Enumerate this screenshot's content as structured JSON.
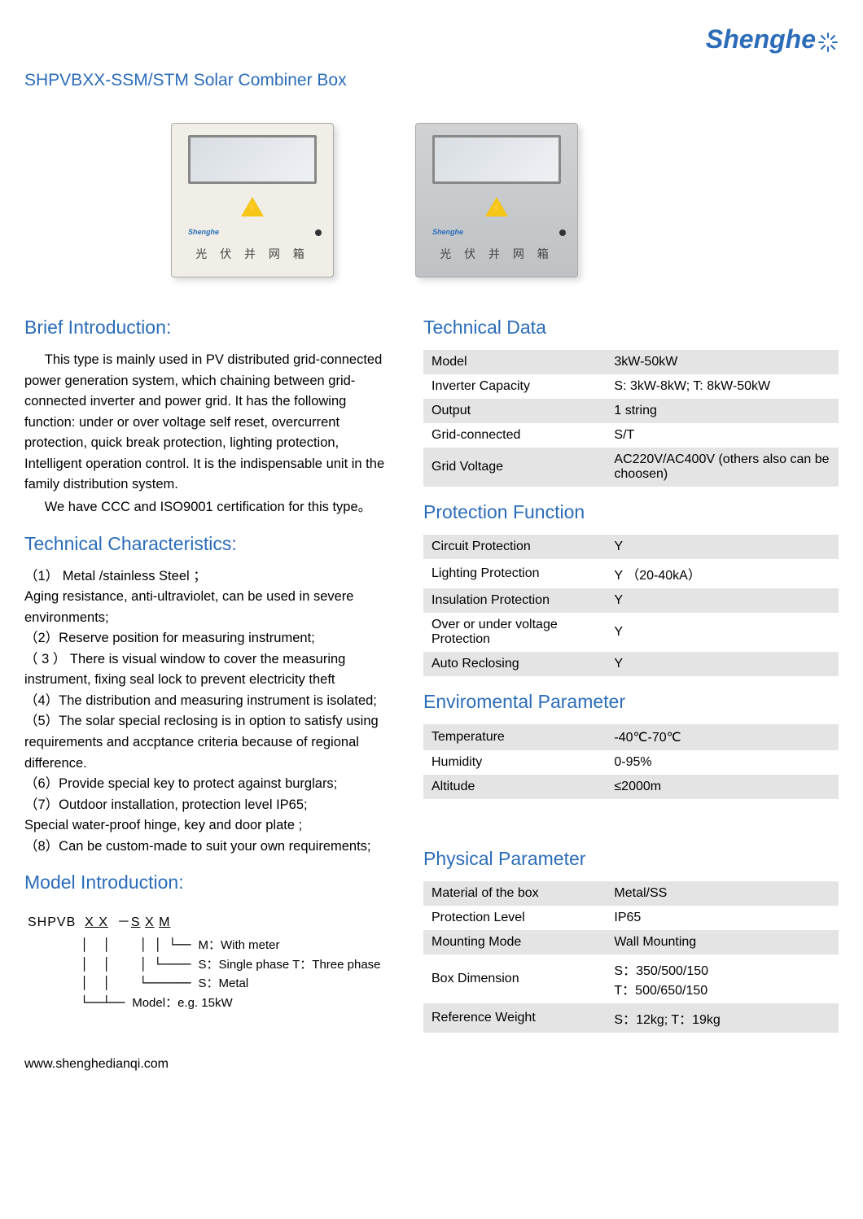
{
  "logo": {
    "text": "Shenghe"
  },
  "page_title": "SHPVBXX-SSM/STM  Solar Combiner Box",
  "product_box_label": "光 伏 并 网 箱",
  "product_box_brand": "Shenghe",
  "left": {
    "intro_heading": "Brief Introduction:",
    "intro_p1": "This type is mainly used in PV distributed grid-connected power generation system, which chaining between grid-connected inverter and power grid. It has the following   function:   under or over voltage self reset, overcurrent protection, quick break protection, lighting protection, Intelligent operation control. It is the indispensable unit in the family distribution system.",
    "intro_p2": "We have CCC and ISO9001 certification for this type。",
    "tech_char_heading": "Technical Characteristics:",
    "tech_chars": [
      "（1） Metal /stainless Steel ；",
      "Aging resistance,   anti-ultraviolet, can be used in severe environments;",
      "（2）Reserve position for measuring instrument;",
      "（ 3 ） There  is  visual  window  to  cover  the  measuring instrument, fixing seal lock to prevent electricity theft",
      "（4）The distribution and measuring instrument is isolated;",
      "（5）The solar special reclosing is in option to satisfy using requirements and accptance criteria because of   regional difference.",
      "（6）Provide special key to protect against burglars;",
      "（7）Outdoor installation, protection level IP65;",
      "Special water-proof hinge, key and door plate ;",
      "（8）Can be custom-made to suit your own requirements;"
    ],
    "model_heading": "Model Introduction:",
    "model_code": "SHPVB  X X  － S X M",
    "model_legend": {
      "m": "M：With meter",
      "phase": "S：Single phase  T：Three phase",
      "metal": "S：Metal",
      "model": "Model：e.g. 15kW"
    }
  },
  "right": {
    "tech_data_heading": "Technical Data",
    "tech_data": [
      [
        "Model",
        "3kW-50kW"
      ],
      [
        "Inverter Capacity",
        "S: 3kW-8kW;  T: 8kW-50kW"
      ],
      [
        "Output",
        "1 string"
      ],
      [
        "Grid-connected",
        "S/T"
      ],
      [
        "Grid Voltage",
        "AC220V/AC400V (others also can be choosen)"
      ]
    ],
    "protection_heading": "Protection Function",
    "protection": [
      [
        "Circuit Protection",
        "Y"
      ],
      [
        "Lighting Protection",
        "Y （20-40kA）"
      ],
      [
        "Insulation Protection",
        "Y"
      ],
      [
        "Over or under voltage Protection",
        "Y"
      ],
      [
        "Auto Reclosing",
        "Y"
      ]
    ],
    "env_heading": "Enviromental   Parameter",
    "env": [
      [
        "Temperature",
        "-40℃-70℃"
      ],
      [
        "Humidity",
        "0-95%"
      ],
      [
        "Altitude",
        "≤2000m"
      ]
    ],
    "phys_heading": "Physical Parameter",
    "phys": [
      [
        "Material of the box",
        "Metal/SS"
      ],
      [
        "Protection Level",
        "IP65"
      ],
      [
        "Mounting Mode",
        "Wall Mounting"
      ],
      [
        "Box Dimension",
        "S：350/500/150\nT：500/650/150"
      ],
      [
        "Reference Weight",
        "S：12kg;  T：19kg"
      ]
    ]
  },
  "footer_url": "www.shenghedianqi.com"
}
